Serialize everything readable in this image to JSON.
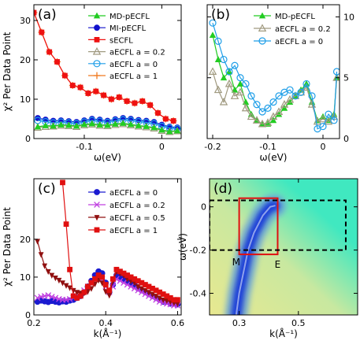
{
  "chart_data": [
    {
      "panel": "(a)",
      "type": "line",
      "xlabel": "ω(eV)",
      "ylabel": "χ² Per Data Point",
      "xlim": [
        -0.165,
        0.025
      ],
      "ylim": [
        0,
        34
      ],
      "xticks": [
        {
          "v": -0.1,
          "t": "-0.1"
        },
        {
          "v": 0,
          "t": "0"
        }
      ],
      "yticks": [
        {
          "v": 0,
          "t": "0"
        },
        {
          "v": 10,
          "t": "10"
        },
        {
          "v": 20,
          "t": "20"
        },
        {
          "v": 30,
          "t": "30"
        }
      ],
      "legend_position": "top-right",
      "series": [
        {
          "name": "MD-pECFL",
          "color": "#22cc22",
          "marker": "triangle",
          "x": [
            -0.16,
            -0.15,
            -0.14,
            -0.13,
            -0.12,
            -0.11,
            -0.1,
            -0.09,
            -0.08,
            -0.07,
            -0.06,
            -0.05,
            -0.04,
            -0.03,
            -0.02,
            -0.01,
            0,
            0.01,
            0.02
          ],
          "y": [
            3.0,
            3.3,
            3.2,
            3.5,
            3.4,
            3.2,
            3.6,
            3.8,
            3.5,
            3.4,
            3.7,
            3.9,
            3.6,
            3.3,
            3.1,
            2.8,
            2.2,
            1.8,
            2.0
          ]
        },
        {
          "name": "MI-pECFL",
          "color": "#1111cc",
          "marker": "circle",
          "x": [
            -0.16,
            -0.15,
            -0.14,
            -0.13,
            -0.12,
            -0.11,
            -0.1,
            -0.09,
            -0.08,
            -0.07,
            -0.06,
            -0.05,
            -0.04,
            -0.03,
            -0.02,
            -0.01,
            0,
            0.01,
            0.02
          ],
          "y": [
            5.2,
            4.8,
            4.5,
            4.6,
            4.4,
            4.2,
            4.6,
            5.0,
            4.8,
            4.5,
            4.9,
            5.2,
            5.0,
            4.7,
            4.5,
            4.2,
            3.5,
            3.0,
            2.8
          ]
        },
        {
          "name": "sECFL",
          "color": "#ee1111",
          "marker": "square",
          "x": [
            -0.165,
            -0.155,
            -0.145,
            -0.135,
            -0.125,
            -0.115,
            -0.105,
            -0.095,
            -0.085,
            -0.075,
            -0.065,
            -0.055,
            -0.045,
            -0.035,
            -0.025,
            -0.015,
            -0.005,
            0.005,
            0.015
          ],
          "y": [
            32.0,
            27.0,
            22.0,
            19.5,
            16.0,
            13.5,
            13.0,
            11.5,
            12.0,
            11.0,
            10.0,
            10.5,
            9.5,
            9.0,
            9.5,
            8.5,
            6.5,
            5.0,
            4.5
          ]
        },
        {
          "name": "aECFL a = 0.2",
          "color": "#a09a80",
          "marker": "open-triangle",
          "x": [
            -0.16,
            -0.15,
            -0.14,
            -0.13,
            -0.12,
            -0.11,
            -0.1,
            -0.09,
            -0.08,
            -0.07,
            -0.06,
            -0.05,
            -0.04,
            -0.03,
            -0.02,
            -0.01,
            0,
            0.01,
            0.02
          ],
          "y": [
            2.8,
            3.0,
            3.1,
            3.3,
            3.2,
            3.0,
            3.4,
            3.6,
            3.3,
            3.2,
            3.5,
            3.7,
            3.4,
            3.1,
            2.9,
            2.6,
            2.0,
            1.7,
            1.9
          ]
        },
        {
          "name": "aECFL a = 0",
          "color": "#1e9ee8",
          "marker": "open-circle",
          "x": [
            -0.16,
            -0.15,
            -0.14,
            -0.13,
            -0.12,
            -0.11,
            -0.1,
            -0.09,
            -0.08,
            -0.07,
            -0.06,
            -0.05,
            -0.04,
            -0.03,
            -0.02,
            -0.01,
            0,
            0.01,
            0.02
          ],
          "y": [
            4.6,
            4.3,
            4.0,
            4.2,
            4.0,
            3.8,
            4.2,
            4.6,
            4.4,
            4.1,
            4.5,
            4.8,
            4.6,
            4.3,
            4.1,
            3.8,
            3.1,
            2.7,
            2.5
          ]
        },
        {
          "name": "aECFL a = 1",
          "color": "#f07a20",
          "marker": "plus",
          "x": [
            -0.165,
            -0.155,
            -0.145,
            -0.135,
            -0.125,
            -0.115,
            -0.105,
            -0.095,
            -0.085,
            -0.075,
            -0.065,
            -0.055,
            -0.045,
            -0.035,
            -0.025,
            -0.015,
            -0.005,
            0.005,
            0.015
          ],
          "y": [
            32.0,
            27.0,
            22.0,
            19.5,
            16.0,
            13.5,
            13.0,
            11.5,
            12.0,
            11.0,
            10.0,
            10.5,
            9.5,
            9.0,
            9.5,
            8.5,
            6.5,
            5.0,
            4.5
          ]
        }
      ]
    },
    {
      "panel": "(b)",
      "type": "line",
      "xlabel": "ω(eV)",
      "ylabel": "",
      "xlim": [
        -0.21,
        0.03
      ],
      "ylim": [
        0,
        11
      ],
      "xticks": [
        {
          "v": -0.2,
          "t": "-0.2"
        },
        {
          "v": -0.1,
          "t": "-0.1"
        },
        {
          "v": 0,
          "t": "0"
        }
      ],
      "yticks": [
        {
          "v": 0,
          "t": "0"
        },
        {
          "v": 5,
          "t": "5"
        },
        {
          "v": 10,
          "t": "10"
        }
      ],
      "legend_position": "top-right",
      "series": [
        {
          "name": "MD-pECFL",
          "color": "#22cc22",
          "marker": "triangle",
          "x": [
            -0.2,
            -0.19,
            -0.18,
            -0.17,
            -0.16,
            -0.15,
            -0.14,
            -0.13,
            -0.12,
            -0.11,
            -0.1,
            -0.09,
            -0.08,
            -0.07,
            -0.06,
            -0.05,
            -0.04,
            -0.03,
            -0.02,
            -0.01,
            0,
            0.01,
            0.02,
            0.025
          ],
          "y": [
            8.5,
            6.5,
            5.0,
            5.5,
            4.0,
            4.5,
            3.0,
            2.0,
            1.5,
            1.2,
            1.2,
            1.5,
            2.0,
            2.5,
            3.0,
            3.5,
            4.0,
            4.5,
            3.0,
            1.5,
            1.8,
            1.5,
            2.0,
            5.0
          ]
        },
        {
          "name": "aECFL a = 0.2",
          "color": "#a09a80",
          "marker": "open-triangle",
          "x": [
            -0.2,
            -0.19,
            -0.18,
            -0.17,
            -0.16,
            -0.15,
            -0.14,
            -0.13,
            -0.12,
            -0.11,
            -0.1,
            -0.09,
            -0.08,
            -0.07,
            -0.06,
            -0.05,
            -0.04,
            -0.03,
            -0.02,
            -0.01,
            0,
            0.01,
            0.02,
            0.025
          ],
          "y": [
            5.5,
            4.0,
            3.0,
            4.5,
            3.5,
            3.8,
            2.5,
            1.8,
            1.5,
            1.2,
            1.3,
            1.8,
            2.2,
            2.8,
            3.2,
            3.5,
            3.8,
            4.2,
            2.8,
            1.4,
            1.6,
            1.4,
            1.8,
            5.0
          ]
        },
        {
          "name": "aECFL a = 0",
          "color": "#1e9ee8",
          "marker": "open-circle",
          "x": [
            -0.2,
            -0.19,
            -0.18,
            -0.17,
            -0.16,
            -0.15,
            -0.14,
            -0.13,
            -0.12,
            -0.11,
            -0.1,
            -0.09,
            -0.08,
            -0.07,
            -0.06,
            -0.05,
            -0.04,
            -0.03,
            -0.02,
            -0.01,
            0,
            0.01,
            0.02,
            0.025
          ],
          "y": [
            9.5,
            8.0,
            6.5,
            5.5,
            6.0,
            5.0,
            4.5,
            3.5,
            2.8,
            2.2,
            2.5,
            3.0,
            3.5,
            3.8,
            4.0,
            3.5,
            3.8,
            4.5,
            3.5,
            0.8,
            1.0,
            2.0,
            1.5,
            5.5
          ]
        }
      ]
    },
    {
      "panel": "(c)",
      "type": "line",
      "xlabel": "k(Å⁻¹)",
      "ylabel": "χ² Per Data Point",
      "xlim": [
        0.2,
        0.61
      ],
      "ylim": [
        0,
        36
      ],
      "xticks": [
        {
          "v": 0.2,
          "t": "0.2"
        },
        {
          "v": 0.4,
          "t": "0.4"
        },
        {
          "v": 0.6,
          "t": "0.6"
        }
      ],
      "yticks": [
        {
          "v": 0,
          "t": "0"
        },
        {
          "v": 10,
          "t": "10"
        },
        {
          "v": 20,
          "t": "20"
        }
      ],
      "legend_position": "top-right",
      "series": [
        {
          "name": "aECFL a = 0",
          "color": "#1a1ad0",
          "marker": "circle",
          "x": [
            0.21,
            0.22,
            0.23,
            0.24,
            0.25,
            0.26,
            0.27,
            0.28,
            0.29,
            0.3,
            0.31,
            0.32,
            0.33,
            0.34,
            0.35,
            0.36,
            0.37,
            0.38,
            0.39,
            0.4,
            0.41,
            0.42,
            0.43,
            0.44,
            0.45,
            0.46,
            0.47,
            0.48,
            0.49,
            0.5,
            0.51,
            0.52,
            0.53,
            0.54,
            0.55,
            0.56,
            0.57,
            0.58,
            0.59,
            0.6
          ],
          "y": [
            3.5,
            3.8,
            3.6,
            3.4,
            3.7,
            3.5,
            3.3,
            3.6,
            3.5,
            3.8,
            4.0,
            4.5,
            5.0,
            6.0,
            7.5,
            9.0,
            10.5,
            11.5,
            11.0,
            8.5,
            6.0,
            8.0,
            10.5,
            10.0,
            9.5,
            9.0,
            8.5,
            8.0,
            7.0,
            6.5,
            6.0,
            5.5,
            5.0,
            4.5,
            4.0,
            3.5,
            3.5,
            3.0,
            3.0,
            2.8
          ]
        },
        {
          "name": "aECFL a = 0.2",
          "color": "#c040e0",
          "marker": "x",
          "x": [
            0.21,
            0.22,
            0.23,
            0.24,
            0.25,
            0.26,
            0.27,
            0.28,
            0.29,
            0.3,
            0.31,
            0.32,
            0.33,
            0.34,
            0.35,
            0.36,
            0.37,
            0.38,
            0.39,
            0.4,
            0.41,
            0.42,
            0.43,
            0.44,
            0.45,
            0.46,
            0.47,
            0.48,
            0.49,
            0.5,
            0.51,
            0.52,
            0.53,
            0.54,
            0.55,
            0.56,
            0.57,
            0.58,
            0.59,
            0.6
          ],
          "y": [
            4.5,
            4.8,
            5.0,
            5.2,
            4.8,
            4.5,
            4.2,
            4.0,
            4.0,
            4.2,
            4.5,
            5.0,
            5.5,
            6.5,
            7.5,
            8.5,
            9.5,
            10.0,
            9.5,
            7.5,
            6.0,
            7.5,
            9.5,
            9.0,
            8.5,
            8.0,
            7.5,
            7.0,
            6.5,
            6.0,
            5.5,
            5.0,
            4.5,
            4.0,
            3.5,
            3.2,
            3.0,
            2.8,
            2.5,
            2.5
          ]
        },
        {
          "name": "aECFL a = 0.5",
          "color": "#901010",
          "marker": "down-triangle",
          "x": [
            0.21,
            0.22,
            0.23,
            0.24,
            0.25,
            0.26,
            0.27,
            0.28,
            0.29,
            0.3,
            0.31,
            0.32,
            0.33,
            0.34,
            0.35,
            0.36,
            0.37,
            0.38,
            0.39,
            0.4,
            0.41,
            0.42,
            0.43,
            0.44,
            0.45,
            0.46,
            0.47,
            0.48,
            0.49,
            0.5,
            0.51,
            0.52,
            0.53,
            0.54,
            0.55,
            0.56,
            0.57,
            0.58,
            0.59,
            0.6
          ],
          "y": [
            19.5,
            16.0,
            13.0,
            11.5,
            10.5,
            9.8,
            9.2,
            8.5,
            7.8,
            7.2,
            6.5,
            6.0,
            5.8,
            5.8,
            6.2,
            7.0,
            8.2,
            9.2,
            8.5,
            6.2,
            5.2,
            9.0,
            11.5,
            11.0,
            10.5,
            9.5,
            9.0,
            8.5,
            7.5,
            7.0,
            6.5,
            6.0,
            5.5,
            5.0,
            4.5,
            4.0,
            3.8,
            3.5,
            3.2,
            3.0
          ]
        },
        {
          "name": "aECFL a = 1",
          "color": "#e01010",
          "marker": "square",
          "x": [
            0.28,
            0.29,
            0.3,
            0.31,
            0.32,
            0.33,
            0.34,
            0.35,
            0.36,
            0.37,
            0.38,
            0.39,
            0.4,
            0.41,
            0.42,
            0.43,
            0.44,
            0.45,
            0.46,
            0.47,
            0.48,
            0.49,
            0.5,
            0.51,
            0.52,
            0.53,
            0.54,
            0.55,
            0.56,
            0.57,
            0.58,
            0.59,
            0.6
          ],
          "y": [
            35.0,
            24.0,
            12.0,
            5.0,
            4.5,
            5.0,
            6.0,
            7.5,
            8.5,
            9.5,
            10.5,
            10.0,
            8.0,
            6.5,
            9.5,
            12.0,
            11.5,
            11.0,
            10.5,
            10.0,
            9.5,
            9.0,
            8.5,
            8.0,
            7.5,
            7.0,
            6.5,
            6.0,
            5.5,
            5.0,
            4.5,
            4.0,
            4.0
          ]
        }
      ]
    },
    {
      "panel": "(d)",
      "type": "heatmap",
      "xlabel": "k(Å⁻¹)",
      "ylabel": "ω(eV)",
      "xlim": [
        0.2,
        0.7
      ],
      "ylim": [
        -0.5,
        0.13
      ],
      "xticks": [
        {
          "v": 0.3,
          "t": "0.3"
        },
        {
          "v": 0.5,
          "t": "0.5"
        }
      ],
      "yticks": [
        {
          "v": 0,
          "t": "0"
        },
        {
          "v": -0.2,
          "t": "-0.2"
        },
        {
          "v": -0.4,
          "t": "-0.4"
        }
      ],
      "colormap": [
        "#1e3fd8",
        "#6aa6d8",
        "#e8e890",
        "#40e8c0"
      ],
      "annotations": [
        {
          "text": "M",
          "k": 0.29,
          "w": -0.22
        },
        {
          "text": "E",
          "k": 0.43,
          "w": -0.23
        }
      ],
      "red_box": {
        "k": [
          0.3,
          0.43
        ],
        "w": [
          -0.22,
          0.04
        ]
      },
      "dashed_box": {
        "k": [
          0.2,
          0.66
        ],
        "w": [
          -0.2,
          0.03
        ]
      },
      "band": [
        {
          "k": 0.29,
          "w": -0.5
        },
        {
          "k": 0.3,
          "w": -0.4
        },
        {
          "k": 0.315,
          "w": -0.3
        },
        {
          "k": 0.33,
          "w": -0.2
        },
        {
          "k": 0.35,
          "w": -0.12
        },
        {
          "k": 0.38,
          "w": -0.04
        },
        {
          "k": 0.405,
          "w": 0.0
        },
        {
          "k": 0.42,
          "w": 0.005
        }
      ]
    }
  ]
}
